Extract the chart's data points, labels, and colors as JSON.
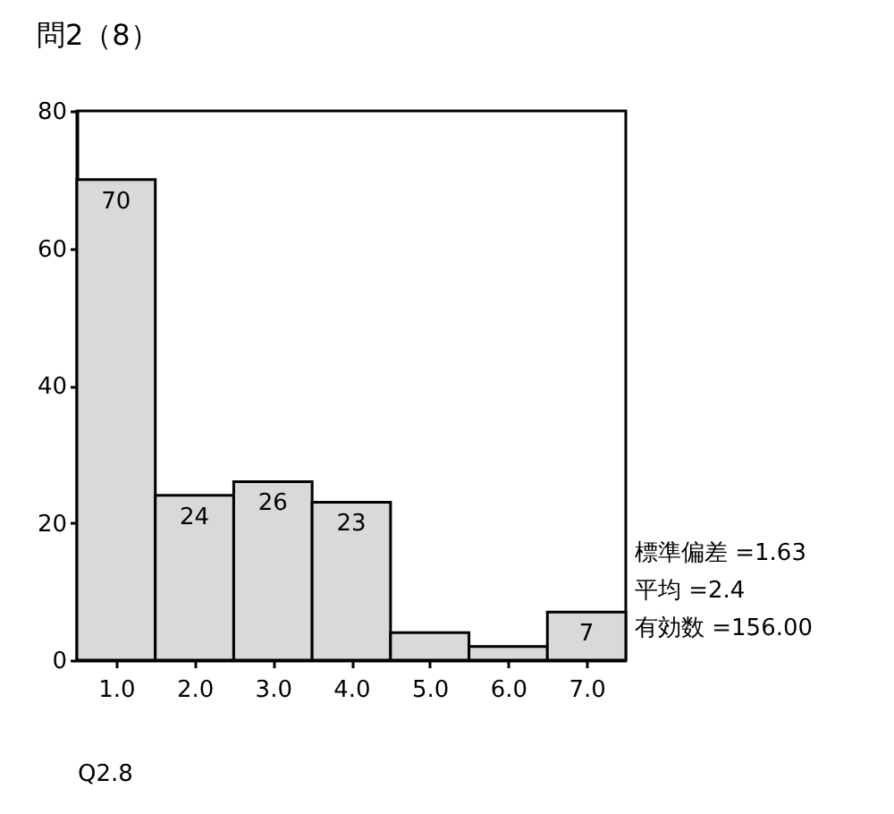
{
  "chart_data": {
    "type": "histogram",
    "title": "問2（8）",
    "xlabel": "Q2.8",
    "bins": [
      0.5,
      1.5,
      2.5,
      3.5,
      4.5,
      5.5,
      6.5,
      7.5
    ],
    "values": [
      70,
      24,
      26,
      23,
      4,
      2,
      7
    ],
    "color": "#d9d9d9",
    "value_labels": [
      "70",
      "24",
      "26",
      "23",
      null,
      null,
      "7"
    ],
    "xlim": [
      0.5,
      7.5
    ],
    "ylim": [
      0,
      80
    ],
    "xticks": [
      {
        "value": 1,
        "label": "1.0"
      },
      {
        "value": 2,
        "label": "2.0"
      },
      {
        "value": 3,
        "label": "3.0"
      },
      {
        "value": 4,
        "label": "4.0"
      },
      {
        "value": 5,
        "label": "5.0"
      },
      {
        "value": 6,
        "label": "6.0"
      },
      {
        "value": 7,
        "label": "7.0"
      }
    ],
    "yticks": [
      0,
      20,
      40,
      60,
      80
    ],
    "annotations": [
      "標準偏差 =1.63",
      "平均 =2.4",
      "有効数 =156.00"
    ]
  }
}
